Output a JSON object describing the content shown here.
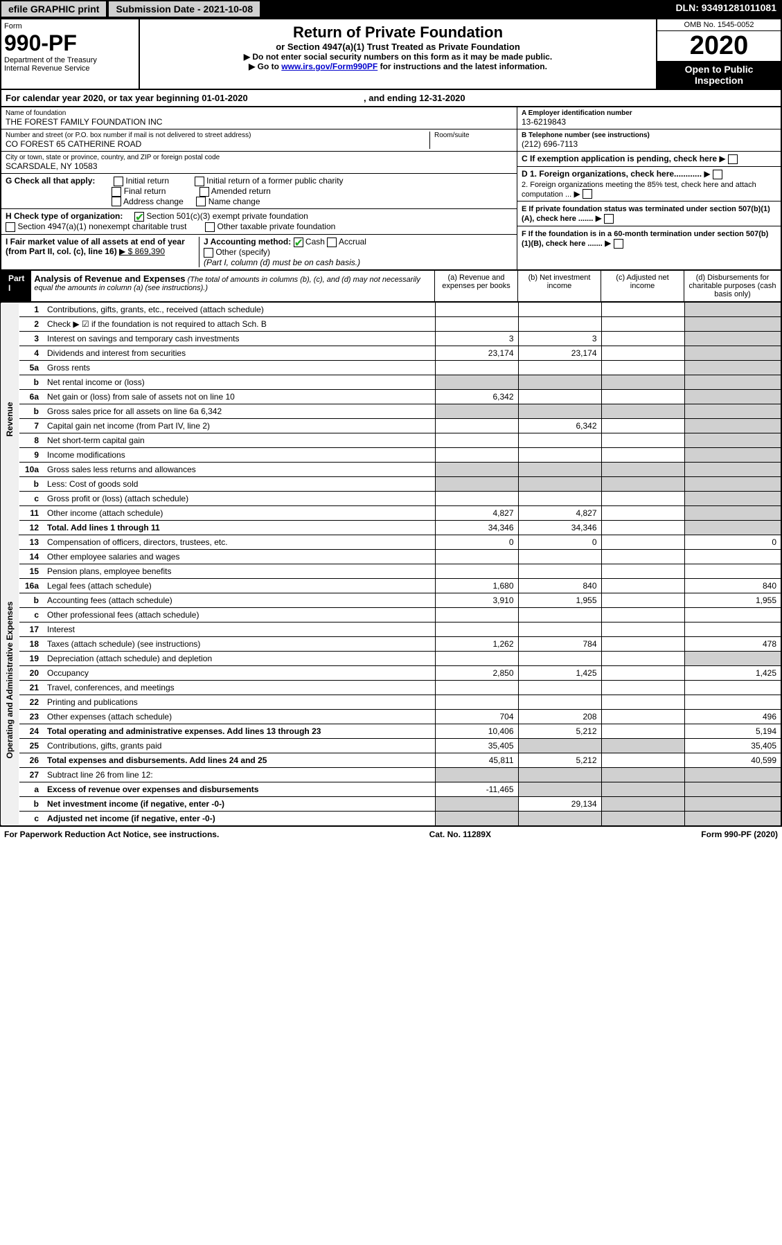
{
  "topbar": {
    "efile": "efile GRAPHIC print",
    "submission": "Submission Date - 2021-10-08",
    "dln": "DLN: 93491281011081"
  },
  "header": {
    "form_label": "Form",
    "form_number": "990-PF",
    "dept1": "Department of the Treasury",
    "dept2": "Internal Revenue Service",
    "title": "Return of Private Foundation",
    "subtitle": "or Section 4947(a)(1) Trust Treated as Private Foundation",
    "instr1": "▶ Do not enter social security numbers on this form as it may be made public.",
    "instr2_pre": "▶ Go to ",
    "instr2_link": "www.irs.gov/Form990PF",
    "instr2_post": " for instructions and the latest information.",
    "omb": "OMB No. 1545-0052",
    "year": "2020",
    "open": "Open to Public Inspection"
  },
  "yearline": {
    "pre": "For calendar year 2020, or tax year beginning 01-01-2020",
    "post": ", and ending 12-31-2020"
  },
  "meta": {
    "name_label": "Name of foundation",
    "name_val": "THE FOREST FAMILY FOUNDATION INC",
    "addr_label": "Number and street (or P.O. box number if mail is not delivered to street address)",
    "addr_val": "CO FOREST 65 CATHERINE ROAD",
    "room_label": "Room/suite",
    "city_label": "City or town, state or province, country, and ZIP or foreign postal code",
    "city_val": "SCARSDALE, NY  10583",
    "a_label": "A Employer identification number",
    "a_val": "13-6219843",
    "b_label": "B Telephone number (see instructions)",
    "b_val": "(212) 696-7113",
    "c_label": "C If exemption application is pending, check here",
    "g_label": "G Check all that apply:",
    "g_opts": [
      "Initial return",
      "Final return",
      "Address change",
      "Initial return of a former public charity",
      "Amended return",
      "Name change"
    ],
    "h_label": "H Check type of organization:",
    "h_opt1": "Section 501(c)(3) exempt private foundation",
    "h_opt2": "Section 4947(a)(1) nonexempt charitable trust",
    "h_opt3": "Other taxable private foundation",
    "i_label": "I Fair market value of all assets at end of year (from Part II, col. (c), line 16)",
    "i_val": "▶ $  869,390",
    "j_label": "J Accounting method:",
    "j_cash": "Cash",
    "j_accrual": "Accrual",
    "j_other": "Other (specify)",
    "j_note": "(Part I, column (d) must be on cash basis.)",
    "d1": "D 1. Foreign organizations, check here............",
    "d2": "2. Foreign organizations meeting the 85% test, check here and attach computation ...",
    "e": "E  If private foundation status was terminated under section 507(b)(1)(A), check here .......",
    "f": "F  If the foundation is in a 60-month termination under section 507(b)(1)(B), check here .......",
    "arrow": "▶"
  },
  "part1": {
    "part_label": "Part I",
    "title": "Analysis of Revenue and Expenses",
    "subtitle": "(The total of amounts in columns (b), (c), and (d) may not necessarily equal the amounts in column (a) (see instructions).)",
    "col_a": "(a)   Revenue and expenses per books",
    "col_b": "(b)   Net investment income",
    "col_c": "(c)   Adjusted net income",
    "col_d": "(d)  Disbursements for charitable purposes (cash basis only)",
    "side_revenue": "Revenue",
    "side_expenses": "Operating and Administrative Expenses",
    "rows": [
      {
        "n": "1",
        "d": "Contributions, gifts, grants, etc., received (attach schedule)"
      },
      {
        "n": "2",
        "d": "Check ▶ ☑ if the foundation is not required to attach Sch. B"
      },
      {
        "n": "3",
        "d": "Interest on savings and temporary cash investments",
        "a": "3",
        "b": "3"
      },
      {
        "n": "4",
        "d": "Dividends and interest from securities",
        "a": "23,174",
        "b": "23,174"
      },
      {
        "n": "5a",
        "d": "Gross rents"
      },
      {
        "n": "b",
        "d": "Net rental income or (loss)"
      },
      {
        "n": "6a",
        "d": "Net gain or (loss) from sale of assets not on line 10",
        "a": "6,342"
      },
      {
        "n": "b",
        "d": "Gross sales price for all assets on line 6a         6,342"
      },
      {
        "n": "7",
        "d": "Capital gain net income (from Part IV, line 2)",
        "b": "6,342"
      },
      {
        "n": "8",
        "d": "Net short-term capital gain"
      },
      {
        "n": "9",
        "d": "Income modifications"
      },
      {
        "n": "10a",
        "d": "Gross sales less returns and allowances"
      },
      {
        "n": "b",
        "d": "Less: Cost of goods sold"
      },
      {
        "n": "c",
        "d": "Gross profit or (loss) (attach schedule)"
      },
      {
        "n": "11",
        "d": "Other income (attach schedule)",
        "a": "4,827",
        "b": "4,827"
      },
      {
        "n": "12",
        "d": "Total. Add lines 1 through 11",
        "a": "34,346",
        "b": "34,346",
        "bold": true
      }
    ],
    "exp_rows": [
      {
        "n": "13",
        "d": "Compensation of officers, directors, trustees, etc.",
        "a": "0",
        "b": "0",
        "dv": "0"
      },
      {
        "n": "14",
        "d": "Other employee salaries and wages"
      },
      {
        "n": "15",
        "d": "Pension plans, employee benefits"
      },
      {
        "n": "16a",
        "d": "Legal fees (attach schedule)",
        "a": "1,680",
        "b": "840",
        "dv": "840"
      },
      {
        "n": "b",
        "d": "Accounting fees (attach schedule)",
        "a": "3,910",
        "b": "1,955",
        "dv": "1,955"
      },
      {
        "n": "c",
        "d": "Other professional fees (attach schedule)"
      },
      {
        "n": "17",
        "d": "Interest"
      },
      {
        "n": "18",
        "d": "Taxes (attach schedule) (see instructions)",
        "a": "1,262",
        "b": "784",
        "dv": "478"
      },
      {
        "n": "19",
        "d": "Depreciation (attach schedule) and depletion"
      },
      {
        "n": "20",
        "d": "Occupancy",
        "a": "2,850",
        "b": "1,425",
        "dv": "1,425"
      },
      {
        "n": "21",
        "d": "Travel, conferences, and meetings"
      },
      {
        "n": "22",
        "d": "Printing and publications"
      },
      {
        "n": "23",
        "d": "Other expenses (attach schedule)",
        "a": "704",
        "b": "208",
        "dv": "496"
      },
      {
        "n": "24",
        "d": "Total operating and administrative expenses. Add lines 13 through 23",
        "a": "10,406",
        "b": "5,212",
        "dv": "5,194",
        "bold": true
      },
      {
        "n": "25",
        "d": "Contributions, gifts, grants paid",
        "a": "35,405",
        "dv": "35,405"
      },
      {
        "n": "26",
        "d": "Total expenses and disbursements. Add lines 24 and 25",
        "a": "45,811",
        "b": "5,212",
        "dv": "40,599",
        "bold": true
      }
    ],
    "final_rows": [
      {
        "n": "27",
        "d": "Subtract line 26 from line 12:"
      },
      {
        "n": "a",
        "d": "Excess of revenue over expenses and disbursements",
        "a": "-11,465",
        "bold": true
      },
      {
        "n": "b",
        "d": "Net investment income (if negative, enter -0-)",
        "b": "29,134",
        "bold": true
      },
      {
        "n": "c",
        "d": "Adjusted net income (if negative, enter -0-)",
        "bold": true
      }
    ]
  },
  "footer": {
    "left": "For Paperwork Reduction Act Notice, see instructions.",
    "mid": "Cat. No. 11289X",
    "right": "Form 990-PF (2020)"
  }
}
